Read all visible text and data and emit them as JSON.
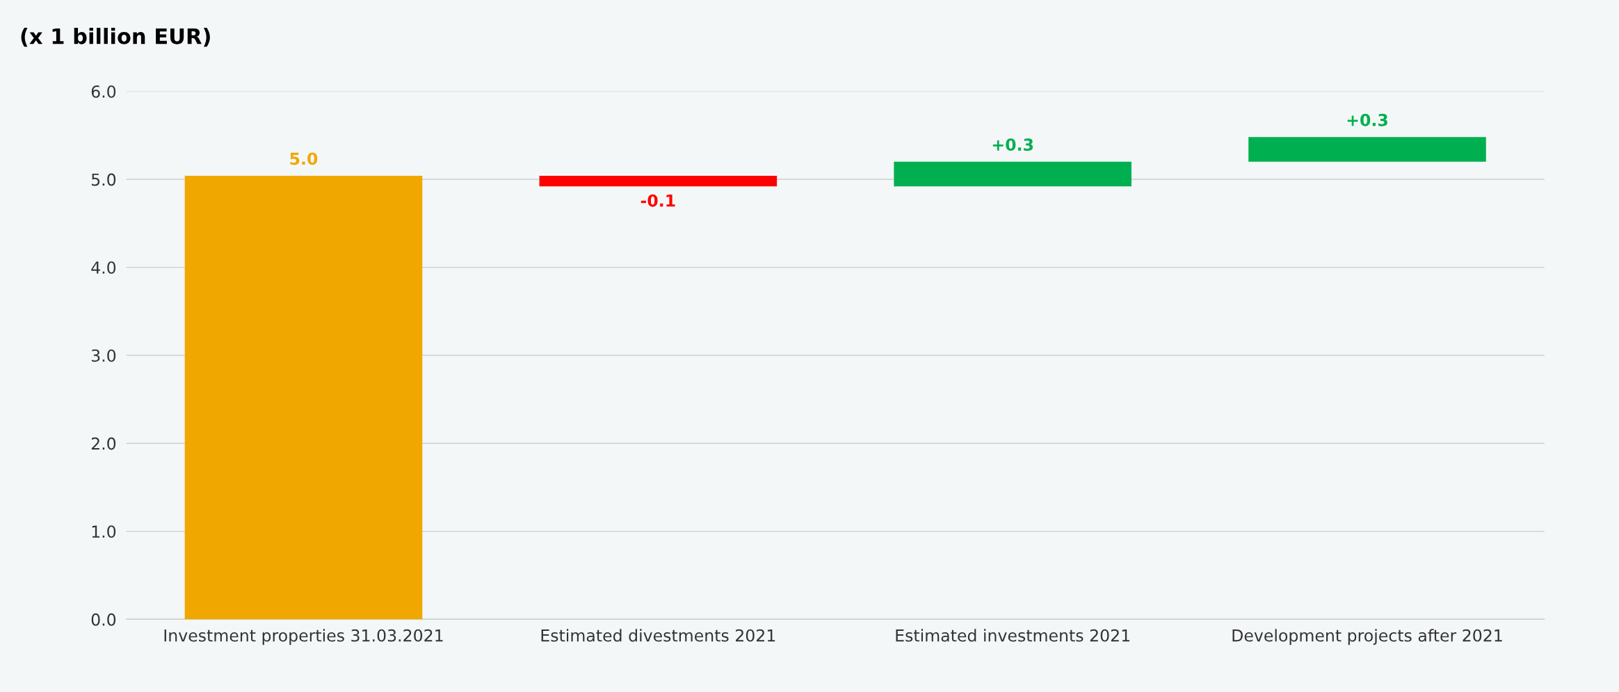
{
  "chart_data": {
    "type": "bar",
    "title": "(x 1 billion EUR)",
    "categories": [
      "Investment properties 31.03.2021",
      "Estimated divestments 2021",
      "Estimated investments 2021",
      "Development projects after 2021"
    ],
    "values": [
      5.04,
      -0.12,
      0.28,
      0.28
    ],
    "base": [
      0,
      5.04,
      4.92,
      5.2
    ],
    "colors": [
      "#f0a800",
      "#ff0000",
      "#00b050",
      "#00b050"
    ],
    "value_labels": [
      "5.0",
      "-0.1",
      "+0.3",
      "+0.3"
    ],
    "ylim": [
      0,
      6
    ],
    "yticks": [
      {
        "value": 0,
        "label": "0.0"
      },
      {
        "value": 1,
        "label": "1.0"
      },
      {
        "value": 2,
        "label": "2.0"
      },
      {
        "value": 3,
        "label": "3.0"
      },
      {
        "value": 4,
        "label": "4.0"
      },
      {
        "value": 5,
        "label": "5.0"
      },
      {
        "value": 6,
        "label": "6.0"
      }
    ],
    "grid": "y"
  }
}
